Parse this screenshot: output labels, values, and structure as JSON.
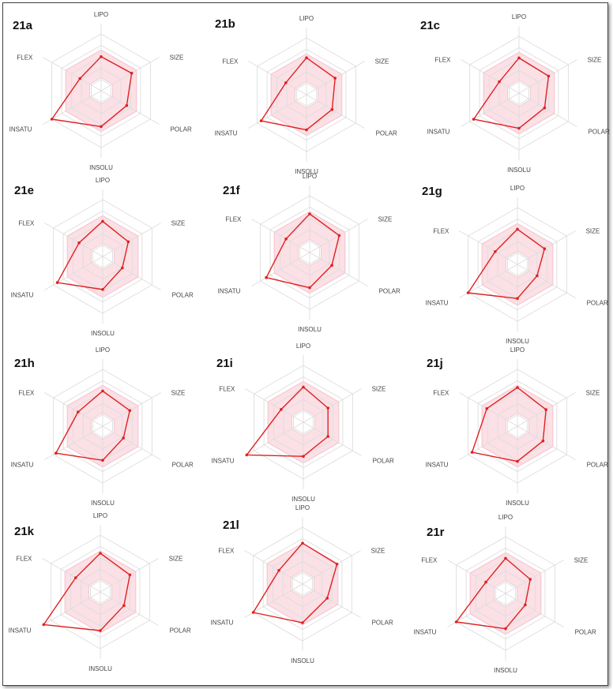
{
  "chart_data": {
    "type": "radar",
    "axes": [
      "LIPO",
      "SIZE",
      "POLAR",
      "INSOLU",
      "INSATU",
      "FLEX"
    ],
    "scale": [
      0,
      1
    ],
    "optimal_range": {
      "inner": 0.23,
      "outer": 0.72
    },
    "colors": {
      "series": "#e02020",
      "optimal_fill": "#f9d3dc",
      "grid": "#dddddd"
    },
    "charts": [
      {
        "title": "21a",
        "series": [
          {
            "values": [
              0.6,
              0.62,
              0.52,
              0.63,
              1.0,
              0.43
            ]
          }
        ]
      },
      {
        "title": "21b",
        "series": [
          {
            "values": [
              0.65,
              0.58,
              0.52,
              0.62,
              0.92,
              0.42
            ]
          }
        ]
      },
      {
        "title": "21c",
        "series": [
          {
            "values": [
              0.62,
              0.6,
              0.52,
              0.62,
              0.92,
              0.4
            ]
          }
        ]
      },
      {
        "title": "21e",
        "series": [
          {
            "values": [
              0.62,
              0.52,
              0.4,
              0.58,
              0.92,
              0.48
            ]
          }
        ]
      },
      {
        "title": "21f",
        "series": [
          {
            "values": [
              0.68,
              0.6,
              0.45,
              0.62,
              0.88,
              0.48
            ]
          }
        ]
      },
      {
        "title": "21g",
        "series": [
          {
            "values": [
              0.62,
              0.55,
              0.4,
              0.6,
              1.0,
              0.45
            ]
          }
        ]
      },
      {
        "title": "21h",
        "series": [
          {
            "values": [
              0.62,
              0.55,
              0.42,
              0.6,
              0.95,
              0.5
            ]
          }
        ]
      },
      {
        "title": "21i",
        "series": [
          {
            "values": [
              0.62,
              0.5,
              0.5,
              0.6,
              1.15,
              0.45
            ]
          }
        ]
      },
      {
        "title": "21j",
        "series": [
          {
            "values": [
              0.68,
              0.58,
              0.52,
              0.62,
              0.92,
              0.62
            ]
          }
        ]
      },
      {
        "title": "21k",
        "series": [
          {
            "values": [
              0.68,
              0.6,
              0.48,
              0.68,
              1.15,
              0.5
            ]
          }
        ]
      },
      {
        "title": "21l",
        "series": [
          {
            "values": [
              0.72,
              0.7,
              0.5,
              0.68,
              1.0,
              0.48
            ]
          }
        ]
      },
      {
        "title": "21r",
        "series": [
          {
            "values": [
              0.62,
              0.5,
              0.4,
              0.62,
              1.0,
              0.4
            ]
          }
        ]
      }
    ]
  }
}
